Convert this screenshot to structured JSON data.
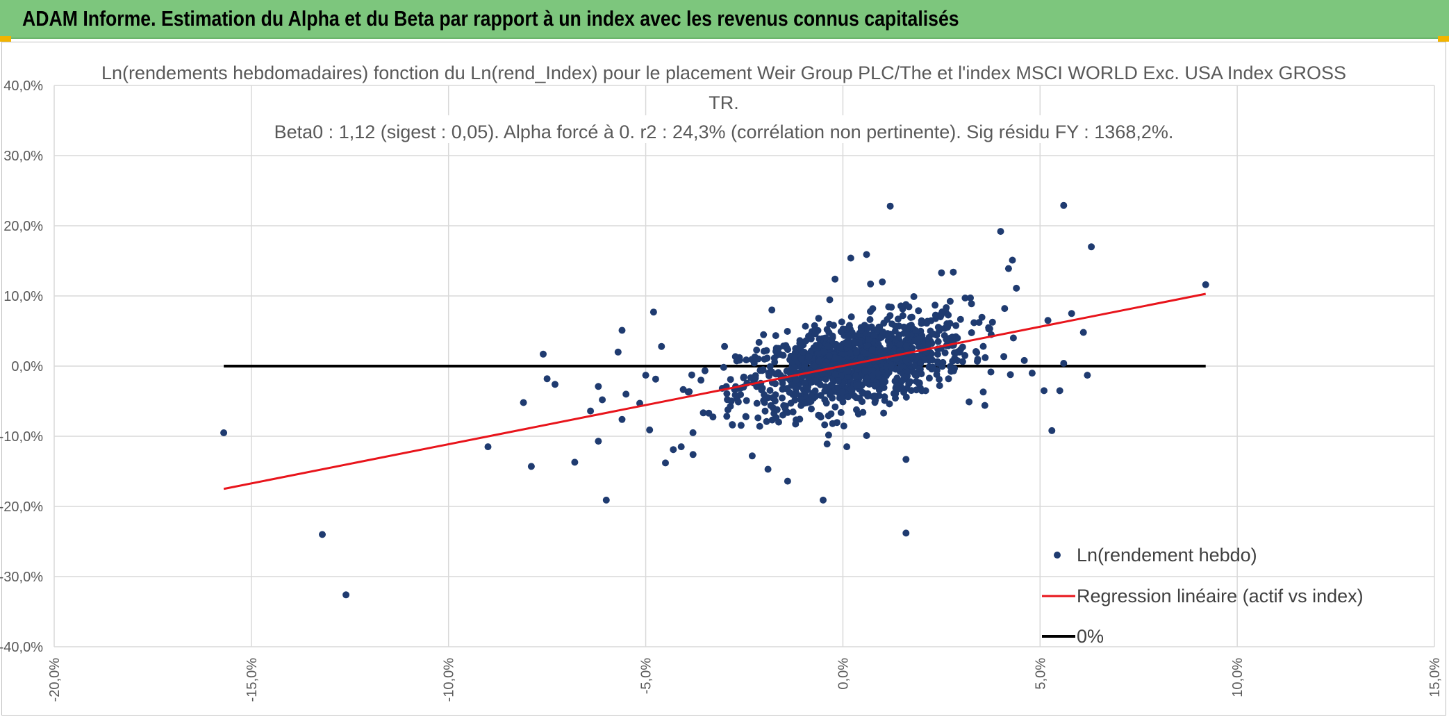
{
  "window": {
    "title": "ADAM Informe. Estimation du Alpha et du Beta par rapport à un index avec les revenus connus capitalisés"
  },
  "colors": {
    "banner": "#7dc67d",
    "points": "#1f3b70",
    "regression": "#e8141b",
    "zero_line": "#000000",
    "grid": "#d9d9d9",
    "accent_corner": "#f2b400"
  },
  "chart_data": {
    "type": "scatter",
    "title_lines": [
      "Ln(rendements hebdomadaires) fonction du Ln(rend_Index) pour le placement Weir Group PLC/The et l'index MSCI WORLD Exc. USA Index GROSS",
      "TR.",
      "Beta0 : 1,12 (sigest : 0,05). Alpha forcé à 0. r2 : 24,3% (corrélation non pertinente). Sig résidu FY : 1368,2%."
    ],
    "xlim": [
      -20,
      15
    ],
    "ylim": [
      -40,
      40
    ],
    "x_ticks": [
      "-20,0%",
      "-15,0%",
      "-10,0%",
      "-5,0%",
      "0,0%",
      "5,0%",
      "10,0%",
      "15,0%"
    ],
    "x_tick_values": [
      -20,
      -15,
      -10,
      -5,
      0,
      5,
      10,
      15
    ],
    "y_ticks": [
      "40,0%",
      "30,0%",
      "20,0%",
      "10,0%",
      "0,0%",
      "-10,0%",
      "-20,0%",
      "-30,0%",
      "-40,0%"
    ],
    "y_tick_values": [
      40,
      30,
      20,
      10,
      0,
      -10,
      -20,
      -30,
      -40
    ],
    "grid": true,
    "legend_position": "bottom-right",
    "legend": [
      "Ln(rendement hebdo)",
      "Regression linéaire (actif vs index)",
      "0%"
    ],
    "series": [
      {
        "name": "Ln(rendement hebdo)",
        "kind": "scatter",
        "points": [
          [
            -15.7,
            -9.5
          ],
          [
            -13.2,
            -24.0
          ],
          [
            -12.6,
            -32.6
          ],
          [
            -9.0,
            -11.5
          ],
          [
            -8.1,
            -5.2
          ],
          [
            -7.9,
            -14.3
          ],
          [
            -7.6,
            1.7
          ],
          [
            -7.5,
            -1.8
          ],
          [
            -7.3,
            -2.6
          ],
          [
            -6.8,
            -13.7
          ],
          [
            -6.4,
            -6.4
          ],
          [
            -6.2,
            -10.7
          ],
          [
            -6.2,
            -2.9
          ],
          [
            -6.1,
            -4.8
          ],
          [
            -6.0,
            -19.1
          ],
          [
            -5.6,
            5.1
          ],
          [
            -5.7,
            2.0
          ],
          [
            -5.6,
            -7.6
          ],
          [
            -5.5,
            -4.0
          ],
          [
            -5.0,
            -1.3
          ],
          [
            -4.9,
            -9.1
          ],
          [
            -4.8,
            7.7
          ],
          [
            -4.6,
            2.8
          ],
          [
            -4.5,
            -13.8
          ],
          [
            -4.3,
            -11.9
          ],
          [
            -4.1,
            -11.5
          ],
          [
            -3.8,
            -12.6
          ],
          [
            -3.6,
            -2.0
          ],
          [
            -3.4,
            -6.7
          ],
          [
            -3.0,
            2.8
          ],
          [
            -2.8,
            -8.4
          ],
          [
            -2.3,
            -12.8
          ],
          [
            -1.9,
            -14.7
          ],
          [
            -1.8,
            8.0
          ],
          [
            -1.4,
            -16.4
          ],
          [
            -1.2,
            2.5
          ],
          [
            -0.8,
            -6.1
          ],
          [
            -0.5,
            -19.1
          ],
          [
            -0.4,
            -11.1
          ],
          [
            -0.3,
            -6.8
          ],
          [
            -0.2,
            12.4
          ],
          [
            0.1,
            -11.5
          ],
          [
            0.2,
            15.4
          ],
          [
            0.6,
            15.9
          ],
          [
            0.6,
            -9.9
          ],
          [
            0.7,
            11.7
          ],
          [
            1.0,
            12.0
          ],
          [
            1.2,
            22.8
          ],
          [
            1.4,
            6.7
          ],
          [
            1.6,
            -13.3
          ],
          [
            1.6,
            -23.8
          ],
          [
            1.8,
            9.9
          ],
          [
            2.1,
            -3.5
          ],
          [
            2.5,
            13.3
          ],
          [
            2.8,
            13.4
          ],
          [
            3.1,
            9.7
          ],
          [
            3.2,
            -5.1
          ],
          [
            3.6,
            -5.6
          ],
          [
            3.7,
            5.3
          ],
          [
            4.0,
            19.2
          ],
          [
            4.2,
            13.9
          ],
          [
            4.3,
            15.1
          ],
          [
            4.4,
            11.1
          ],
          [
            4.6,
            0.8
          ],
          [
            4.8,
            -1.0
          ],
          [
            5.1,
            -3.5
          ],
          [
            5.2,
            6.5
          ],
          [
            5.3,
            -9.2
          ],
          [
            5.5,
            -3.5
          ],
          [
            5.6,
            0.4
          ],
          [
            5.6,
            22.9
          ],
          [
            5.8,
            7.5
          ],
          [
            6.1,
            4.8
          ],
          [
            6.2,
            -1.3
          ],
          [
            6.3,
            17.0
          ],
          [
            9.2,
            11.6
          ]
        ]
      },
      {
        "name": "Regression linéaire (actif vs index)",
        "kind": "line",
        "points": [
          [
            -15.7,
            -17.5
          ],
          [
            9.2,
            10.3
          ]
        ]
      },
      {
        "name": "0%",
        "kind": "line",
        "points": [
          [
            -15.7,
            0.0
          ],
          [
            9.2,
            0.0
          ]
        ]
      }
    ],
    "cloud": {
      "note": "dense central cluster of weekly observations",
      "beta": 1.12
    }
  }
}
